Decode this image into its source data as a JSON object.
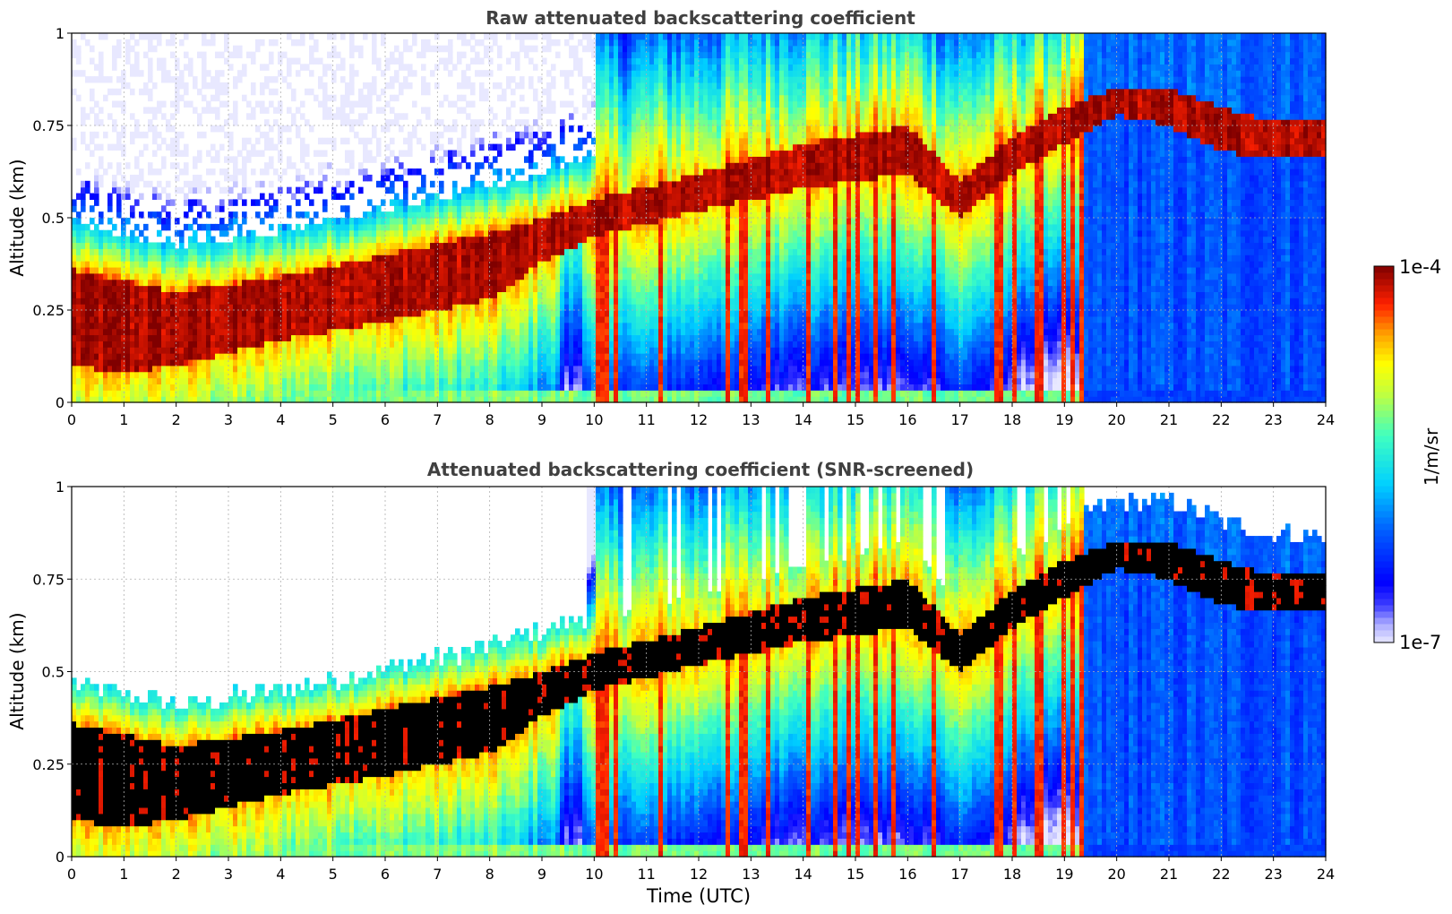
{
  "chart_data": [
    {
      "type": "heatmap",
      "title": "Raw attenuated backscattering coefficient",
      "xlabel": "",
      "ylabel": "Altitude (km)",
      "xlim": [
        0,
        24
      ],
      "ylim": [
        0,
        1
      ],
      "xticks": [
        "0",
        "1",
        "2",
        "3",
        "4",
        "5",
        "6",
        "7",
        "8",
        "9",
        "10",
        "11",
        "12",
        "13",
        "14",
        "15",
        "16",
        "17",
        "18",
        "19",
        "20",
        "21",
        "22",
        "23",
        "24"
      ],
      "yticks": [
        "0",
        "0.25",
        "0.5",
        "0.75",
        "1"
      ],
      "grid": true,
      "screened": false,
      "layer_top_km": [
        [
          0,
          0.36
        ],
        [
          1,
          0.33
        ],
        [
          2,
          0.3
        ],
        [
          4,
          0.34
        ],
        [
          6,
          0.4
        ],
        [
          8,
          0.46
        ],
        [
          9,
          0.5
        ],
        [
          10,
          0.55
        ],
        [
          12,
          0.62
        ],
        [
          14,
          0.7
        ],
        [
          16,
          0.75
        ],
        [
          17,
          0.6
        ],
        [
          18,
          0.72
        ],
        [
          19,
          0.8
        ],
        [
          20,
          0.85
        ],
        [
          21,
          0.85
        ],
        [
          22,
          0.8
        ],
        [
          23,
          0.76
        ],
        [
          24,
          0.76
        ]
      ],
      "layer_bottom_km": [
        [
          0,
          0.1
        ],
        [
          1,
          0.08
        ],
        [
          2,
          0.1
        ],
        [
          4,
          0.17
        ],
        [
          6,
          0.22
        ],
        [
          8,
          0.28
        ],
        [
          9,
          0.38
        ],
        [
          10,
          0.45
        ],
        [
          12,
          0.52
        ],
        [
          14,
          0.58
        ],
        [
          16,
          0.62
        ],
        [
          17,
          0.5
        ],
        [
          18,
          0.62
        ],
        [
          19,
          0.7
        ],
        [
          20,
          0.78
        ],
        [
          21,
          0.75
        ],
        [
          22,
          0.68
        ],
        [
          23,
          0.66
        ],
        [
          24,
          0.66
        ]
      ]
    },
    {
      "type": "heatmap",
      "title": "Attenuated backscattering coefficient (SNR-screened)",
      "xlabel": "Time (UTC)",
      "ylabel": "Altitude (km)",
      "xlim": [
        0,
        24
      ],
      "ylim": [
        0,
        1
      ],
      "xticks": [
        "0",
        "1",
        "2",
        "3",
        "4",
        "5",
        "6",
        "7",
        "8",
        "9",
        "10",
        "11",
        "12",
        "13",
        "14",
        "15",
        "16",
        "17",
        "18",
        "19",
        "20",
        "21",
        "22",
        "23",
        "24"
      ],
      "yticks": [
        "0",
        "0.25",
        "0.5",
        "0.75",
        "1"
      ],
      "grid": true,
      "screened": true
    }
  ],
  "colorbar": {
    "label": "1/m/sr",
    "max_label": "1e-4",
    "min_label": "1e-7",
    "scale": "log",
    "colormap": "jet",
    "range": [
      1e-07,
      0.0001
    ]
  },
  "colors": {
    "title": "#404040",
    "grid": "#b0b0b0",
    "saturated_raw": "#800000",
    "saturated_screened": "#000000"
  }
}
